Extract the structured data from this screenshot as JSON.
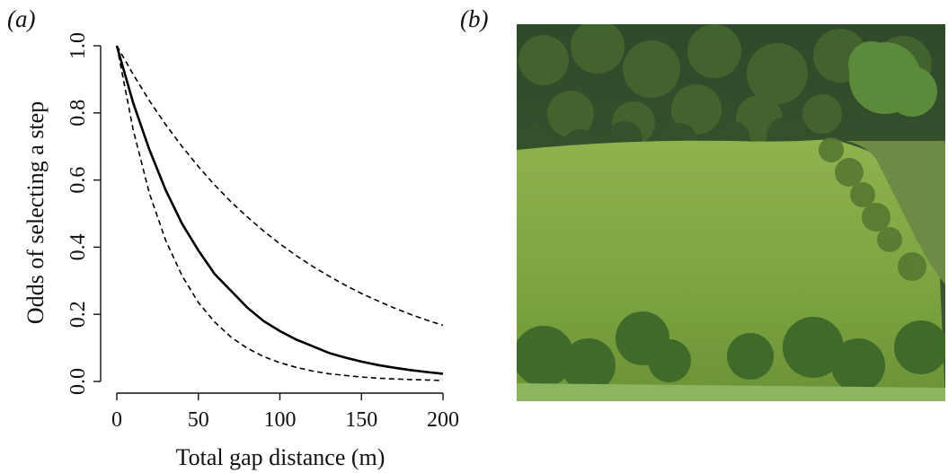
{
  "panels": {
    "a_label": "(a)",
    "b_label": "(b)"
  },
  "chart_data": {
    "type": "line",
    "title": "",
    "xlabel": "Total gap distance (m)",
    "ylabel": "Odds of selecting a step",
    "xlim": [
      0,
      200
    ],
    "ylim": [
      0,
      1
    ],
    "xticks": [
      0,
      50,
      100,
      150,
      200
    ],
    "xtick_labels": [
      "0",
      "50",
      "100",
      "150",
      "200"
    ],
    "yticks": [
      0,
      0.2,
      0.4,
      0.6,
      0.8,
      1.0
    ],
    "ytick_labels": [
      "0.0",
      "0.2",
      "0.4",
      "0.6",
      "0.8",
      "1.0"
    ],
    "grid": false,
    "legend": "none",
    "x": [
      0,
      10,
      20,
      30,
      40,
      50,
      60,
      70,
      80,
      90,
      100,
      110,
      120,
      130,
      140,
      150,
      160,
      170,
      180,
      190,
      200
    ],
    "series": [
      {
        "style": "solid",
        "color": "#000000",
        "values": [
          1.0,
          0.83,
          0.69,
          0.57,
          0.47,
          0.39,
          0.32,
          0.27,
          0.22,
          0.18,
          0.15,
          0.125,
          0.105,
          0.085,
          0.071,
          0.059,
          0.049,
          0.041,
          0.034,
          0.028,
          0.023
        ]
      },
      {
        "style": "dashed",
        "color": "#000000",
        "values": [
          1.0,
          0.915,
          0.836,
          0.765,
          0.7,
          0.64,
          0.585,
          0.535,
          0.49,
          0.448,
          0.41,
          0.375,
          0.343,
          0.314,
          0.287,
          0.262,
          0.24,
          0.219,
          0.2,
          0.183,
          0.167
        ]
      },
      {
        "style": "dashed",
        "color": "#000000",
        "values": [
          1.0,
          0.75,
          0.56,
          0.42,
          0.315,
          0.235,
          0.177,
          0.132,
          0.099,
          0.074,
          0.056,
          0.042,
          0.031,
          0.023,
          0.018,
          0.013,
          0.01,
          0.0075,
          0.0056,
          0.0042,
          0.003
        ]
      }
    ]
  },
  "photo": {
    "subject": "hillside-pasture-with-forest"
  }
}
